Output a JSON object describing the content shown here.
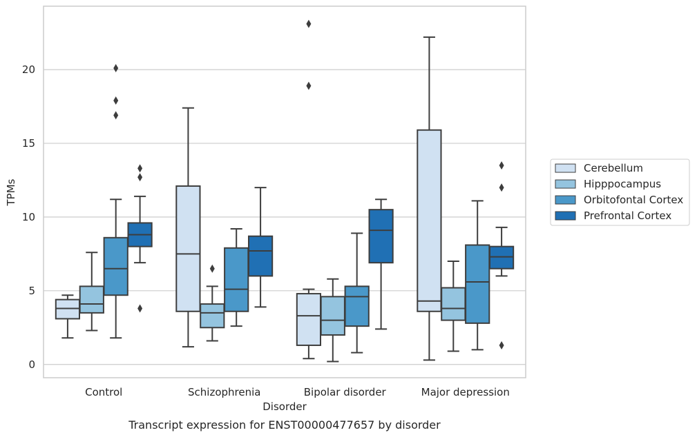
{
  "caption": "Transcript expression for ENST00000477657 by disorder",
  "chart_data": {
    "type": "box",
    "title": "",
    "xlabel": "Disorder",
    "ylabel": "TPMs",
    "ylim": [
      -0.9,
      24.3
    ],
    "yticks": [
      0,
      5,
      10,
      15,
      20
    ],
    "grid": "horizontal",
    "legend_position": "right",
    "categories": [
      "Control",
      "Schizophrenia",
      "Bipolar disorder",
      "Major depression"
    ],
    "series": [
      {
        "name": "Cerebellum",
        "color": "#d0e1f2",
        "boxes": [
          {
            "q1": 3.1,
            "median": 3.8,
            "q3": 4.4,
            "whislo": 1.8,
            "whishi": 4.7,
            "fliers": []
          },
          {
            "q1": 3.6,
            "median": 7.5,
            "q3": 12.1,
            "whislo": 1.2,
            "whishi": 17.4,
            "fliers": []
          },
          {
            "q1": 1.3,
            "median": 3.3,
            "q3": 4.8,
            "whislo": 0.4,
            "whishi": 5.1,
            "fliers": [
              18.9,
              23.1
            ]
          },
          {
            "q1": 3.6,
            "median": 4.3,
            "q3": 15.9,
            "whislo": 0.3,
            "whishi": 22.2,
            "fliers": []
          }
        ]
      },
      {
        "name": "Hipppocampus",
        "color": "#94c4df",
        "boxes": [
          {
            "q1": 3.5,
            "median": 4.1,
            "q3": 5.3,
            "whislo": 2.3,
            "whishi": 7.6,
            "fliers": []
          },
          {
            "q1": 2.5,
            "median": 3.5,
            "q3": 4.1,
            "whislo": 1.6,
            "whishi": 5.3,
            "fliers": [
              6.5
            ]
          },
          {
            "q1": 2.0,
            "median": 3.0,
            "q3": 4.6,
            "whislo": 0.2,
            "whishi": 5.8,
            "fliers": []
          },
          {
            "q1": 3.0,
            "median": 3.8,
            "q3": 5.2,
            "whislo": 0.9,
            "whishi": 7.0,
            "fliers": []
          }
        ]
      },
      {
        "name": "Orbitofontal Cortex",
        "color": "#4a98c9",
        "boxes": [
          {
            "q1": 4.7,
            "median": 6.5,
            "q3": 8.6,
            "whislo": 1.8,
            "whishi": 11.2,
            "fliers": [
              16.9,
              17.9,
              20.1
            ]
          },
          {
            "q1": 3.6,
            "median": 5.1,
            "q3": 7.9,
            "whislo": 2.6,
            "whishi": 9.2,
            "fliers": []
          },
          {
            "q1": 2.6,
            "median": 4.6,
            "q3": 5.3,
            "whislo": 0.8,
            "whishi": 8.9,
            "fliers": []
          },
          {
            "q1": 2.8,
            "median": 5.6,
            "q3": 8.1,
            "whislo": 1.0,
            "whishi": 11.1,
            "fliers": []
          }
        ]
      },
      {
        "name": "Prefrontal Cortex",
        "color": "#2070b4",
        "boxes": [
          {
            "q1": 8.0,
            "median": 8.8,
            "q3": 9.6,
            "whislo": 6.9,
            "whishi": 11.4,
            "fliers": [
              3.8,
              12.7,
              13.3
            ]
          },
          {
            "q1": 6.0,
            "median": 7.7,
            "q3": 8.7,
            "whislo": 3.9,
            "whishi": 12.0,
            "fliers": []
          },
          {
            "q1": 6.9,
            "median": 9.1,
            "q3": 10.5,
            "whislo": 2.4,
            "whishi": 11.2,
            "fliers": []
          },
          {
            "q1": 6.5,
            "median": 7.3,
            "q3": 8.0,
            "whislo": 6.0,
            "whishi": 9.3,
            "fliers": [
              1.3,
              12.0,
              13.5
            ]
          }
        ]
      }
    ]
  }
}
